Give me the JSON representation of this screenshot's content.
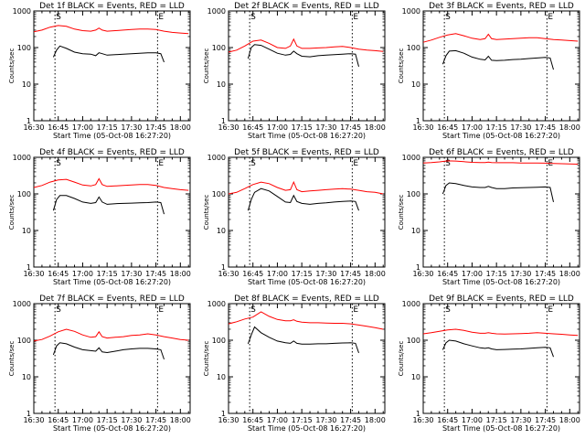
{
  "x_tick_labels": [
    "16:30",
    "16:45",
    "17:00",
    "17:15",
    "17:30",
    "17:45",
    "18:00"
  ],
  "y_tick_labels": [
    "1",
    "10",
    "100",
    "1000"
  ],
  "x_axis_label": "Start Time (05-Oct-08 16:27:20)",
  "y_axis_label": "Counts/sec",
  "marker_s": "S",
  "marker_e": "E",
  "colors": {
    "events": "#000000",
    "lld": "#ff0000"
  },
  "chart_data": [
    {
      "type": "line",
      "title": "Det 1f BLACK = Events, RED = LLD",
      "xlim": [
        "16:30",
        "18:06"
      ],
      "ylim": [
        1,
        1000
      ],
      "yscale": "log",
      "markers": {
        "S": "16:43",
        "E": "17:46"
      },
      "series": [
        {
          "name": "Events",
          "color": "#000000",
          "x": [
            "16:42",
            "16:44",
            "16:46",
            "16:50",
            "16:55",
            "17:00",
            "17:05",
            "17:08",
            "17:10",
            "17:12",
            "17:15",
            "17:20",
            "17:25",
            "17:30",
            "17:35",
            "17:40",
            "17:45",
            "17:48",
            "17:50"
          ],
          "y": [
            55,
            85,
            110,
            95,
            75,
            68,
            66,
            60,
            72,
            68,
            62,
            64,
            66,
            68,
            70,
            72,
            72,
            68,
            40
          ]
        },
        {
          "name": "LLD",
          "color": "#ff0000",
          "x": [
            "16:30",
            "16:35",
            "16:40",
            "16:45",
            "16:50",
            "16:55",
            "17:00",
            "17:05",
            "17:08",
            "17:10",
            "17:12",
            "17:15",
            "17:20",
            "17:25",
            "17:30",
            "17:35",
            "17:40",
            "17:45",
            "17:50",
            "17:55",
            "18:00",
            "18:05"
          ],
          "y": [
            270,
            300,
            360,
            400,
            380,
            320,
            290,
            280,
            300,
            340,
            300,
            280,
            290,
            300,
            310,
            320,
            320,
            310,
            280,
            260,
            250,
            240
          ]
        }
      ]
    },
    {
      "type": "line",
      "title": "Det 2f BLACK = Events, RED = LLD",
      "xlim": [
        "16:30",
        "18:06"
      ],
      "ylim": [
        1,
        1000
      ],
      "yscale": "log",
      "markers": {
        "S": "16:43",
        "E": "17:46"
      },
      "series": [
        {
          "name": "Events",
          "color": "#000000",
          "x": [
            "16:42",
            "16:44",
            "16:46",
            "16:50",
            "16:55",
            "17:00",
            "17:05",
            "17:08",
            "17:10",
            "17:12",
            "17:15",
            "17:20",
            "17:25",
            "17:30",
            "17:35",
            "17:40",
            "17:45",
            "17:48",
            "17:50"
          ],
          "y": [
            50,
            100,
            120,
            115,
            90,
            70,
            62,
            65,
            80,
            68,
            58,
            56,
            60,
            62,
            64,
            66,
            68,
            66,
            30
          ]
        },
        {
          "name": "LLD",
          "color": "#ff0000",
          "x": [
            "16:30",
            "16:35",
            "16:40",
            "16:45",
            "16:50",
            "16:55",
            "17:00",
            "17:05",
            "17:08",
            "17:10",
            "17:12",
            "17:15",
            "17:20",
            "17:25",
            "17:30",
            "17:35",
            "17:40",
            "17:45",
            "17:50",
            "17:55",
            "18:00",
            "18:05"
          ],
          "y": [
            75,
            85,
            110,
            150,
            160,
            130,
            100,
            95,
            110,
            170,
            110,
            95,
            95,
            98,
            100,
            105,
            108,
            100,
            90,
            85,
            82,
            78
          ]
        }
      ]
    },
    {
      "type": "line",
      "title": "Det 3f BLACK = Events, RED = LLD",
      "xlim": [
        "16:30",
        "18:06"
      ],
      "ylim": [
        1,
        1000
      ],
      "yscale": "log",
      "markers": {
        "S": "16:43",
        "E": "17:46"
      },
      "series": [
        {
          "name": "Events",
          "color": "#000000",
          "x": [
            "16:42",
            "16:44",
            "16:46",
            "16:50",
            "16:55",
            "17:00",
            "17:05",
            "17:08",
            "17:10",
            "17:12",
            "17:15",
            "17:20",
            "17:25",
            "17:30",
            "17:35",
            "17:40",
            "17:45",
            "17:48",
            "17:50"
          ],
          "y": [
            35,
            60,
            80,
            82,
            70,
            55,
            48,
            46,
            58,
            45,
            44,
            45,
            47,
            48,
            50,
            52,
            54,
            52,
            25
          ]
        },
        {
          "name": "LLD",
          "color": "#ff0000",
          "x": [
            "16:30",
            "16:35",
            "16:40",
            "16:45",
            "16:50",
            "16:55",
            "17:00",
            "17:05",
            "17:08",
            "17:10",
            "17:12",
            "17:15",
            "17:20",
            "17:25",
            "17:30",
            "17:35",
            "17:40",
            "17:45",
            "17:50",
            "17:55",
            "18:00",
            "18:05"
          ],
          "y": [
            140,
            160,
            190,
            220,
            240,
            210,
            180,
            165,
            175,
            230,
            175,
            165,
            170,
            175,
            180,
            185,
            185,
            175,
            165,
            160,
            155,
            150
          ]
        }
      ]
    },
    {
      "type": "line",
      "title": "Det 4f BLACK = Events, RED = LLD",
      "xlim": [
        "16:30",
        "18:06"
      ],
      "ylim": [
        1,
        1000
      ],
      "yscale": "log",
      "markers": {
        "S": "16:43",
        "E": "17:46"
      },
      "series": [
        {
          "name": "Events",
          "color": "#000000",
          "x": [
            "16:42",
            "16:44",
            "16:46",
            "16:50",
            "16:55",
            "17:00",
            "17:05",
            "17:08",
            "17:10",
            "17:12",
            "17:15",
            "17:20",
            "17:25",
            "17:30",
            "17:35",
            "17:40",
            "17:45",
            "17:48",
            "17:50"
          ],
          "y": [
            35,
            70,
            90,
            90,
            75,
            60,
            55,
            58,
            82,
            60,
            52,
            54,
            55,
            56,
            57,
            58,
            60,
            58,
            28
          ]
        },
        {
          "name": "LLD",
          "color": "#ff0000",
          "x": [
            "16:30",
            "16:35",
            "16:40",
            "16:45",
            "16:50",
            "16:55",
            "17:00",
            "17:05",
            "17:08",
            "17:10",
            "17:12",
            "17:15",
            "17:20",
            "17:25",
            "17:30",
            "17:35",
            "17:40",
            "17:45",
            "17:50",
            "17:55",
            "18:00",
            "18:05"
          ],
          "y": [
            150,
            170,
            210,
            240,
            250,
            210,
            175,
            165,
            180,
            260,
            180,
            160,
            165,
            170,
            175,
            180,
            180,
            170,
            150,
            140,
            130,
            125
          ]
        }
      ]
    },
    {
      "type": "line",
      "title": "Det 5f BLACK = Events, RED = LLD",
      "xlim": [
        "16:30",
        "18:06"
      ],
      "ylim": [
        1,
        1000
      ],
      "yscale": "log",
      "markers": {
        "S": "16:43",
        "E": "17:46"
      },
      "series": [
        {
          "name": "Events",
          "color": "#000000",
          "x": [
            "16:42",
            "16:44",
            "16:46",
            "16:50",
            "16:55",
            "17:00",
            "17:05",
            "17:08",
            "17:10",
            "17:12",
            "17:15",
            "17:20",
            "17:25",
            "17:30",
            "17:35",
            "17:40",
            "17:45",
            "17:48",
            "17:50"
          ],
          "y": [
            35,
            70,
            110,
            140,
            120,
            85,
            60,
            58,
            90,
            62,
            55,
            52,
            55,
            57,
            60,
            62,
            64,
            62,
            35
          ]
        },
        {
          "name": "LLD",
          "color": "#ff0000",
          "x": [
            "16:30",
            "16:35",
            "16:40",
            "16:45",
            "16:50",
            "16:55",
            "17:00",
            "17:05",
            "17:08",
            "17:10",
            "17:12",
            "17:15",
            "17:20",
            "17:25",
            "17:30",
            "17:35",
            "17:40",
            "17:45",
            "17:50",
            "17:55",
            "18:00",
            "18:05"
          ],
          "y": [
            100,
            110,
            140,
            180,
            210,
            190,
            150,
            125,
            130,
            210,
            130,
            115,
            120,
            125,
            130,
            135,
            140,
            135,
            125,
            115,
            110,
            100
          ]
        }
      ]
    },
    {
      "type": "line",
      "title": "Det 6f BLACK = Events, RED = LLD",
      "xlim": [
        "16:30",
        "18:06"
      ],
      "ylim": [
        1,
        1000
      ],
      "yscale": "log",
      "markers": {
        "S": "16:43",
        "E": "17:46"
      },
      "series": [
        {
          "name": "Events",
          "color": "#000000",
          "x": [
            "16:42",
            "16:44",
            "16:46",
            "16:50",
            "16:55",
            "17:00",
            "17:05",
            "17:08",
            "17:10",
            "17:12",
            "17:15",
            "17:20",
            "17:25",
            "17:30",
            "17:35",
            "17:40",
            "17:45",
            "17:48",
            "17:50"
          ],
          "y": [
            100,
            170,
            200,
            190,
            170,
            155,
            150,
            150,
            160,
            150,
            140,
            140,
            145,
            148,
            150,
            152,
            155,
            150,
            60
          ]
        },
        {
          "name": "LLD",
          "color": "#ff0000",
          "x": [
            "16:30",
            "16:35",
            "16:40",
            "16:45",
            "16:50",
            "16:55",
            "17:00",
            "17:05",
            "17:08",
            "17:10",
            "17:12",
            "17:15",
            "17:20",
            "17:25",
            "17:30",
            "17:35",
            "17:40",
            "17:45",
            "17:50",
            "17:55",
            "18:00",
            "18:05"
          ],
          "y": [
            700,
            720,
            750,
            800,
            790,
            760,
            730,
            720,
            720,
            740,
            720,
            710,
            710,
            710,
            700,
            700,
            700,
            690,
            680,
            670,
            660,
            650
          ]
        }
      ]
    },
    {
      "type": "line",
      "title": "Det 7f BLACK = Events, RED = LLD",
      "xlim": [
        "16:30",
        "18:06"
      ],
      "ylim": [
        1,
        1000
      ],
      "yscale": "log",
      "markers": {
        "S": "16:43",
        "E": "17:46"
      },
      "series": [
        {
          "name": "Events",
          "color": "#000000",
          "x": [
            "16:42",
            "16:44",
            "16:46",
            "16:50",
            "16:55",
            "17:00",
            "17:05",
            "17:08",
            "17:10",
            "17:12",
            "17:15",
            "17:20",
            "17:25",
            "17:30",
            "17:35",
            "17:40",
            "17:45",
            "17:48",
            "17:50"
          ],
          "y": [
            40,
            70,
            85,
            80,
            65,
            55,
            52,
            50,
            62,
            48,
            46,
            50,
            55,
            58,
            60,
            60,
            58,
            55,
            30
          ]
        },
        {
          "name": "LLD",
          "color": "#ff0000",
          "x": [
            "16:30",
            "16:35",
            "16:40",
            "16:45",
            "16:50",
            "16:55",
            "17:00",
            "17:05",
            "17:08",
            "17:10",
            "17:12",
            "17:15",
            "17:20",
            "17:25",
            "17:30",
            "17:35",
            "17:40",
            "17:45",
            "17:50",
            "17:55",
            "18:00",
            "18:05"
          ],
          "y": [
            95,
            105,
            130,
            170,
            200,
            175,
            140,
            120,
            125,
            170,
            125,
            115,
            120,
            125,
            135,
            140,
            150,
            140,
            125,
            115,
            105,
            100
          ]
        }
      ]
    },
    {
      "type": "line",
      "title": "Det 8f BLACK = Events, RED = LLD",
      "xlim": [
        "16:30",
        "18:06"
      ],
      "ylim": [
        1,
        1000
      ],
      "yscale": "log",
      "markers": {
        "S": "16:43",
        "E": "17:46"
      },
      "series": [
        {
          "name": "Events",
          "color": "#000000",
          "x": [
            "16:42",
            "16:44",
            "16:46",
            "16:50",
            "16:55",
            "17:00",
            "17:05",
            "17:08",
            "17:10",
            "17:12",
            "17:15",
            "17:20",
            "17:25",
            "17:30",
            "17:35",
            "17:40",
            "17:45",
            "17:48",
            "17:50"
          ],
          "y": [
            80,
            140,
            230,
            160,
            120,
            95,
            85,
            82,
            95,
            82,
            78,
            78,
            80,
            80,
            82,
            84,
            85,
            82,
            45
          ]
        },
        {
          "name": "LLD",
          "color": "#ff0000",
          "x": [
            "16:30",
            "16:35",
            "16:40",
            "16:45",
            "16:50",
            "16:55",
            "17:00",
            "17:05",
            "17:08",
            "17:10",
            "17:12",
            "17:15",
            "17:20",
            "17:25",
            "17:30",
            "17:35",
            "17:40",
            "17:45",
            "17:50",
            "17:55",
            "18:00",
            "18:05"
          ],
          "y": [
            280,
            320,
            380,
            430,
            600,
            450,
            370,
            340,
            340,
            360,
            330,
            310,
            300,
            300,
            295,
            290,
            290,
            280,
            260,
            240,
            220,
            200
          ]
        }
      ]
    },
    {
      "type": "line",
      "title": "Det 9f BLACK = Events, RED = LLD",
      "xlim": [
        "16:30",
        "18:06"
      ],
      "ylim": [
        1,
        1000
      ],
      "yscale": "log",
      "markers": {
        "S": "16:43",
        "E": "17:46"
      },
      "series": [
        {
          "name": "Events",
          "color": "#000000",
          "x": [
            "16:42",
            "16:44",
            "16:46",
            "16:50",
            "16:55",
            "17:00",
            "17:05",
            "17:08",
            "17:10",
            "17:12",
            "17:15",
            "17:20",
            "17:25",
            "17:30",
            "17:35",
            "17:40",
            "17:45",
            "17:48",
            "17:50"
          ],
          "y": [
            55,
            85,
            100,
            95,
            80,
            70,
            62,
            60,
            62,
            58,
            55,
            56,
            57,
            58,
            60,
            62,
            64,
            62,
            35
          ]
        },
        {
          "name": "LLD",
          "color": "#ff0000",
          "x": [
            "16:30",
            "16:35",
            "16:40",
            "16:45",
            "16:50",
            "16:55",
            "17:00",
            "17:05",
            "17:08",
            "17:10",
            "17:12",
            "17:15",
            "17:20",
            "17:25",
            "17:30",
            "17:35",
            "17:40",
            "17:45",
            "17:50",
            "17:55",
            "18:00",
            "18:05"
          ],
          "y": [
            150,
            160,
            175,
            190,
            200,
            185,
            165,
            155,
            155,
            160,
            155,
            150,
            148,
            150,
            152,
            155,
            160,
            155,
            150,
            145,
            140,
            135
          ]
        }
      ]
    }
  ]
}
